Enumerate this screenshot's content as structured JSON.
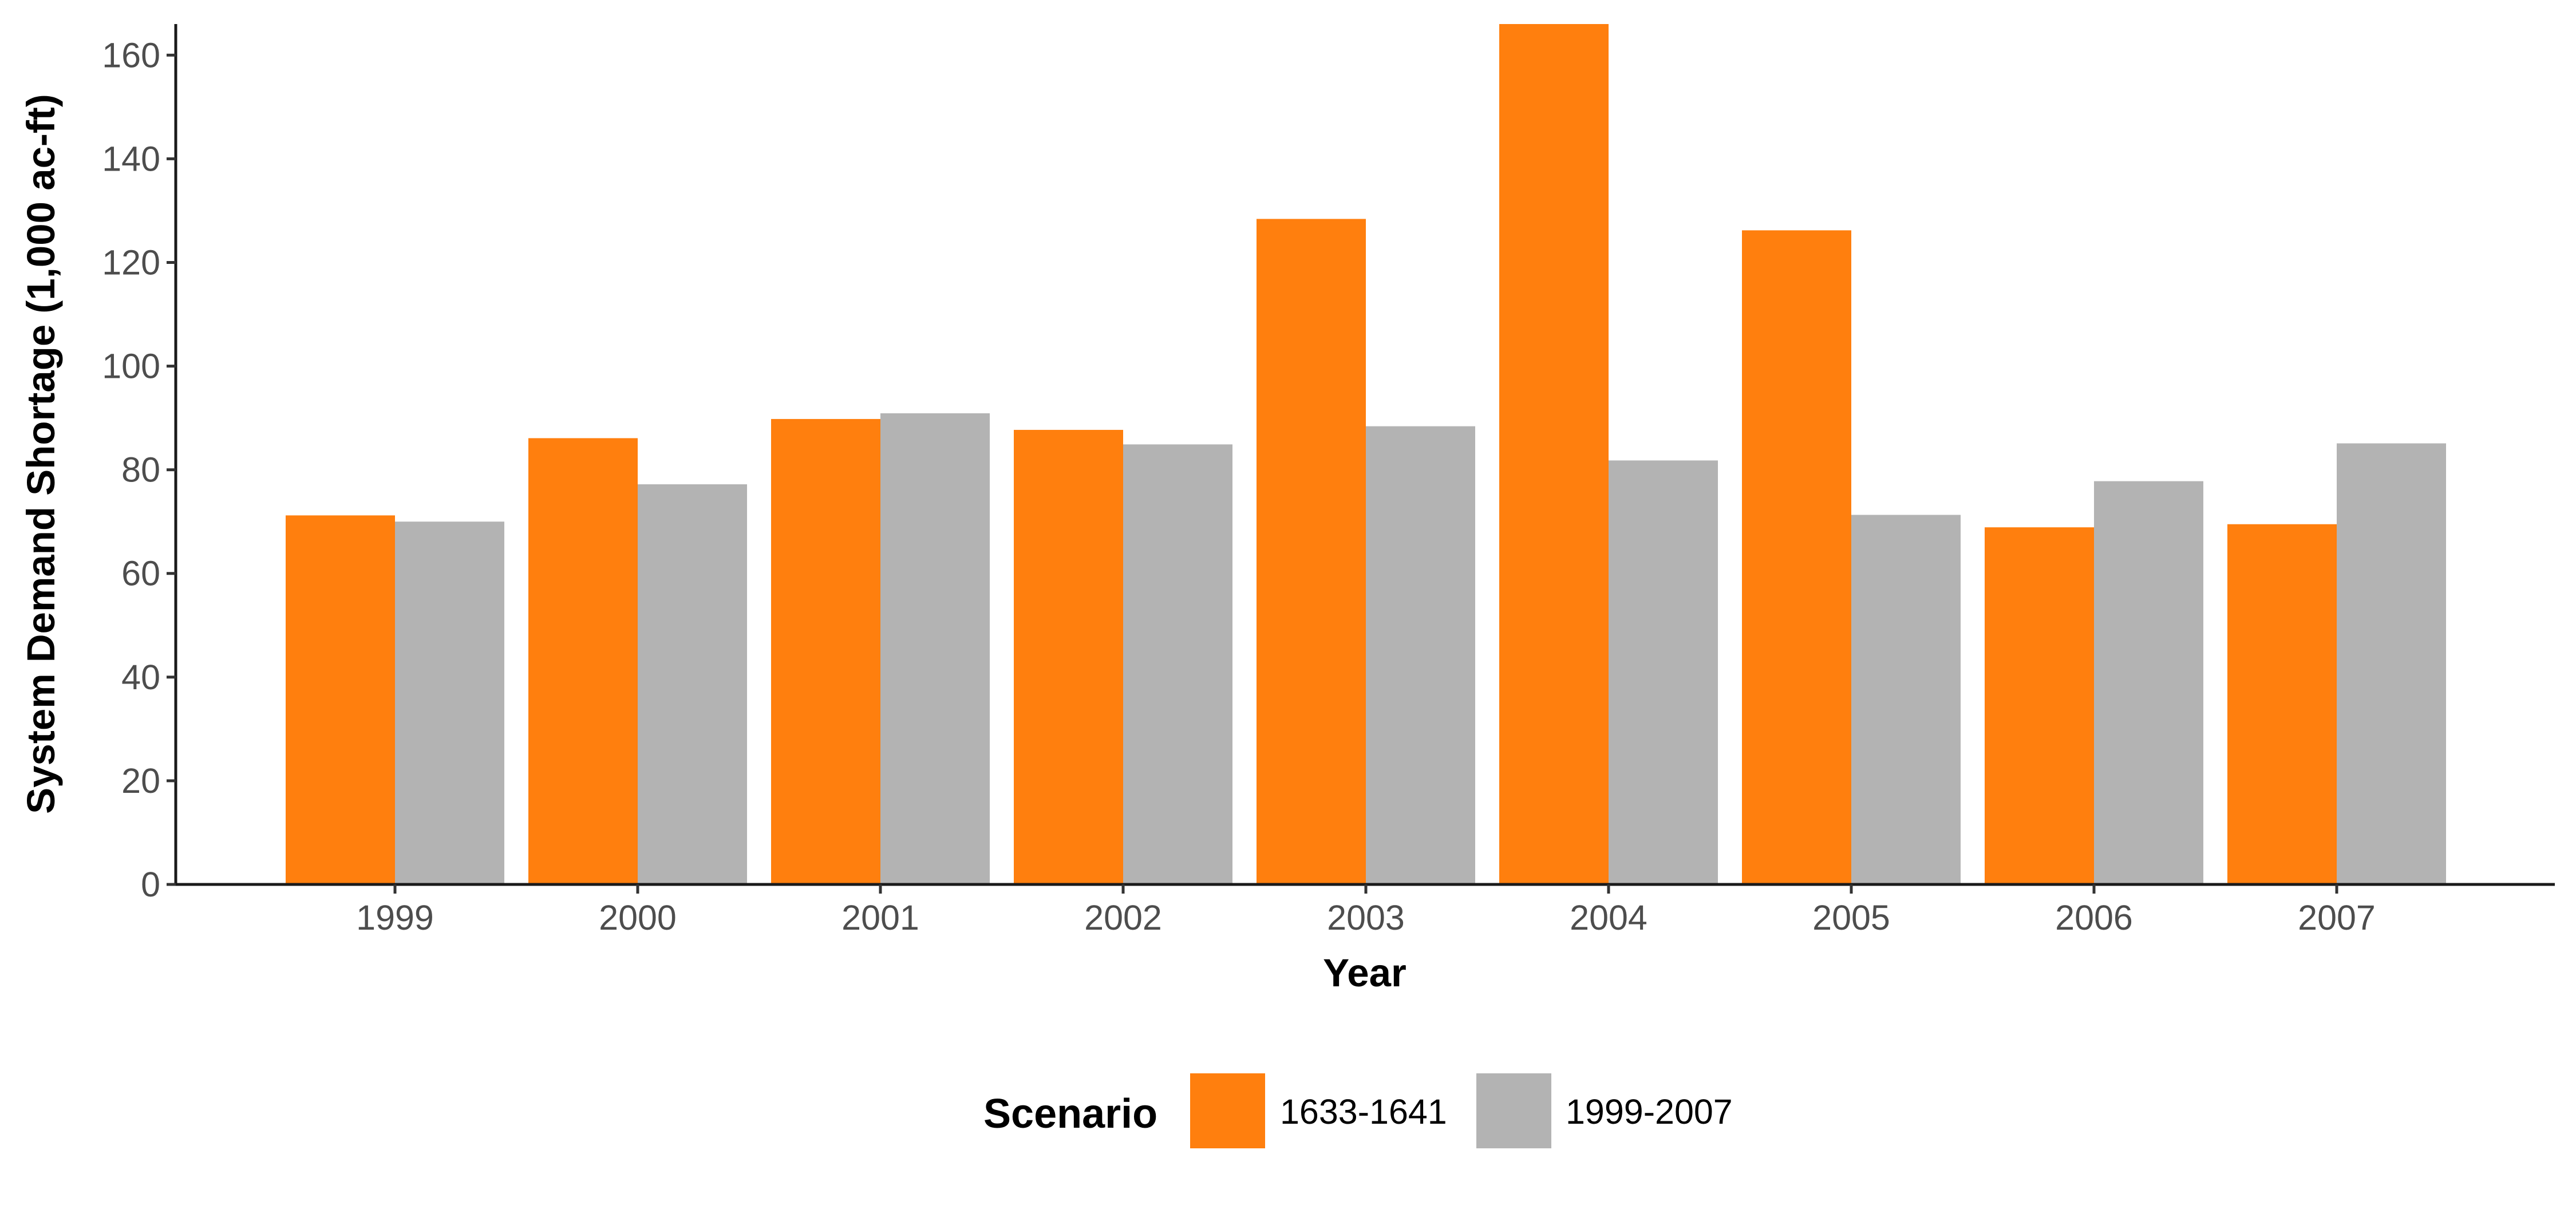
{
  "chart_data": {
    "type": "bar",
    "title": "",
    "xlabel": "Year",
    "ylabel": "System Demand Shortage (1,000 ac-ft)",
    "categories": [
      "1999",
      "2000",
      "2001",
      "2002",
      "2003",
      "2004",
      "2005",
      "2006",
      "2007"
    ],
    "series": [
      {
        "name": "1633-1641",
        "color": "#ff7f0e",
        "values": [
          71.2,
          86.1,
          89.8,
          87.7,
          128.4,
          166.0,
          126.2,
          68.9,
          69.5
        ]
      },
      {
        "name": "1999-2007",
        "color": "#b3b3b3",
        "values": [
          70.0,
          77.2,
          90.9,
          84.9,
          88.4,
          81.8,
          71.3,
          77.8,
          85.1
        ]
      }
    ],
    "ylim": [
      0,
      166
    ],
    "yticks": [
      0,
      20,
      40,
      60,
      80,
      100,
      120,
      140,
      160
    ],
    "grid": false,
    "legend": {
      "title": "Scenario",
      "position": "bottom"
    }
  }
}
